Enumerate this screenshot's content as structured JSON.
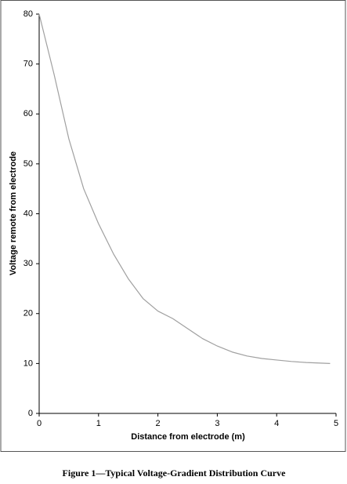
{
  "chart_data": {
    "type": "line",
    "x_label": "Distance from electrode (m)",
    "y_label": "Voltage remote from electrode",
    "caption": "Figure 1—Typical Voltage-Gradient Distribution Curve",
    "x": [
      0,
      0.25,
      0.5,
      0.75,
      1,
      1.25,
      1.5,
      1.75,
      2,
      2.25,
      2.5,
      2.75,
      3,
      3.25,
      3.5,
      3.75,
      4,
      4.25,
      4.5,
      4.9
    ],
    "series": [
      {
        "color": "#a0a0a0",
        "values": [
          80,
          68,
          55,
          45,
          38,
          32,
          27,
          23,
          20.5,
          19,
          17,
          15,
          13.5,
          12.3,
          11.5,
          11,
          10.7,
          10.4,
          10.2,
          10
        ]
      }
    ],
    "xlim": [
      0,
      5
    ],
    "xticks": [
      0,
      1,
      2,
      3,
      4,
      5
    ],
    "ylim": [
      0,
      80
    ],
    "yticks": [
      0,
      10,
      20,
      30,
      40,
      50,
      60,
      70,
      80
    ],
    "grid": false
  }
}
